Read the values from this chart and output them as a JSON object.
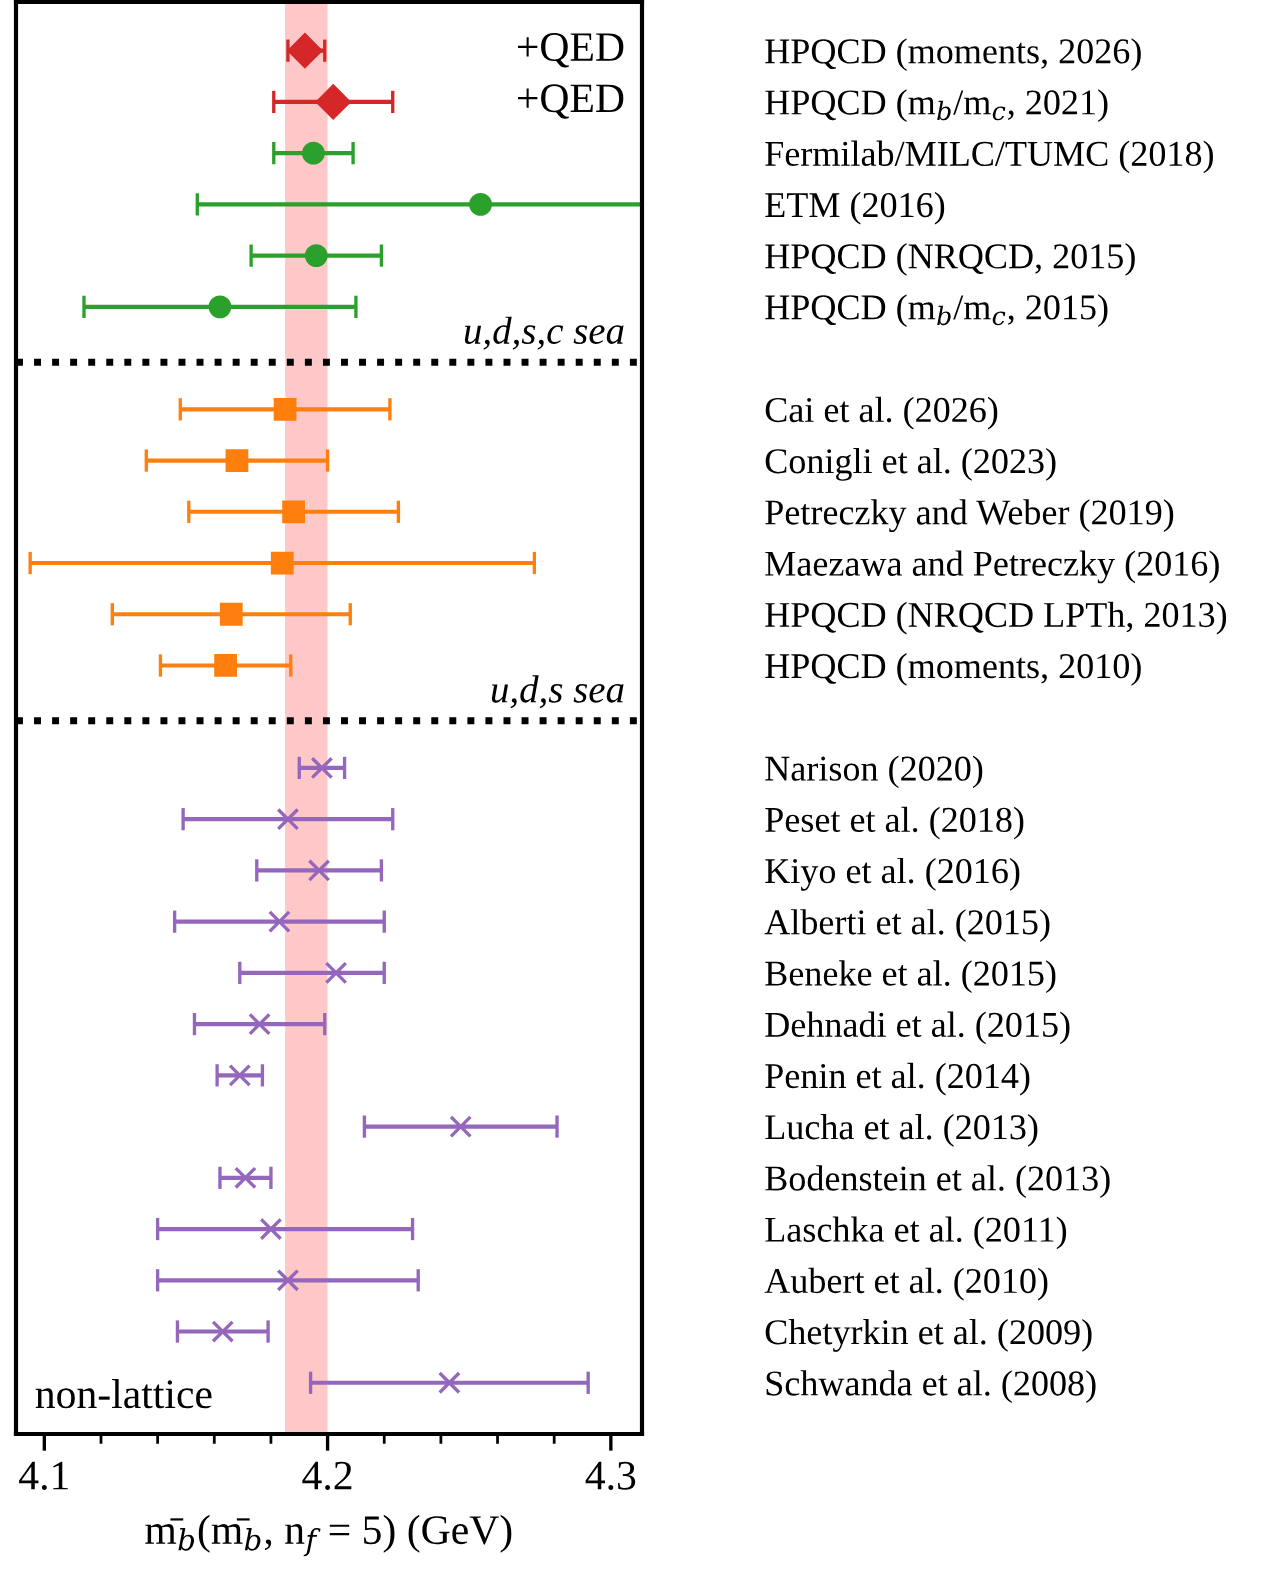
{
  "chart_data": {
    "type": "scatter",
    "orientation": "horizontal",
    "xlabel": "m̄$_{b}$(m̄$_{b}$, n$_{f}$ = 5) (GeV)",
    "categories": [
      "HPQCD (moments, 2026)",
      "HPQCD (m$_{b}$/m$_{c}$, 2021)",
      "Fermilab/MILC/TUMC (2018)",
      "ETM (2016)",
      "HPQCD (NRQCD, 2015)",
      "HPQCD (m$_{b}$/m$_{c}$, 2015)",
      null,
      "Cai et al. (2026)",
      "Conigli et al. (2023)",
      "Petreczky and Weber (2019)",
      "Maezawa and Petreczky (2016)",
      "HPQCD (NRQCD LPTh, 2013)",
      "HPQCD (moments, 2010)",
      null,
      "Narison (2020)",
      "Peset et al. (2018)",
      "Kiyo et al. (2016)",
      "Alberti et al. (2015)",
      "Beneke et al. (2015)",
      "Dehnadi et al. (2015)",
      "Penin et al. (2014)",
      "Lucha et al. (2013)",
      "Bodenstein et al. (2013)",
      "Laschka et al. (2011)",
      "Aubert et al. (2010)",
      "Chetyrkin et al. (2009)",
      "Schwanda et al. (2008)"
    ],
    "series": [
      {
        "color": "#d62728",
        "marker": "diamond",
        "values": [
          4.192,
          4.202,
          null,
          null,
          null,
          null,
          null,
          null,
          null,
          null,
          null,
          null,
          null,
          null,
          null,
          null,
          null,
          null,
          null,
          null,
          null,
          null,
          null,
          null,
          null,
          null,
          null
        ],
        "errors": [
          [
            4.186,
            4.199
          ],
          0.021,
          null,
          null,
          null,
          null,
          null,
          null,
          null,
          null,
          null,
          null,
          null,
          null,
          null,
          null,
          null,
          null,
          null,
          null,
          null,
          null,
          null,
          null,
          null,
          null,
          null
        ]
      },
      {
        "color": "#2ca02c",
        "marker": "circle",
        "values": [
          null,
          null,
          4.195,
          4.254,
          4.196,
          4.162,
          null,
          null,
          null,
          null,
          null,
          null,
          null,
          null,
          null,
          null,
          null,
          null,
          null,
          null,
          null,
          null,
          null,
          null,
          null,
          null,
          null
        ],
        "errors": [
          null,
          null,
          0.014,
          [
            4.154,
            4.311
          ],
          0.023,
          0.048,
          null,
          null,
          null,
          null,
          null,
          null,
          null,
          null,
          null,
          null,
          null,
          null,
          null,
          null,
          null,
          null,
          null,
          null,
          null,
          null,
          null
        ]
      },
      {
        "color": "#ff7f0e",
        "marker": "square",
        "values": [
          null,
          null,
          null,
          null,
          null,
          null,
          null,
          4.185,
          4.168,
          4.188,
          4.184,
          4.166,
          4.164,
          null,
          null,
          null,
          null,
          null,
          null,
          null,
          null,
          null,
          null,
          null,
          null,
          null,
          null
        ],
        "errors": [
          null,
          null,
          null,
          null,
          null,
          null,
          null,
          0.037,
          0.032,
          0.037,
          0.089,
          0.042,
          0.023,
          null,
          null,
          null,
          null,
          null,
          null,
          null,
          null,
          null,
          null,
          null,
          null,
          null,
          null
        ]
      },
      {
        "color": "#9467bd",
        "marker": "cross",
        "values": [
          null,
          null,
          null,
          null,
          null,
          null,
          null,
          null,
          null,
          null,
          null,
          null,
          null,
          null,
          4.198,
          4.186,
          4.197,
          4.183,
          4.203,
          4.176,
          4.169,
          4.247,
          4.171,
          4.18,
          4.186,
          4.163,
          4.243
        ],
        "errors": [
          null,
          null,
          null,
          null,
          null,
          null,
          null,
          null,
          null,
          null,
          null,
          null,
          null,
          null,
          0.008,
          0.037,
          0.022,
          0.037,
          [
            4.169,
            4.22
          ],
          0.023,
          0.008,
          0.034,
          0.009,
          [
            4.14,
            4.23
          ],
          0.046,
          0.016,
          0.049
        ]
      }
    ],
    "xlim": [
      4.09,
      4.311
    ],
    "xticks": [
      4.1,
      {
        "value": 4.12,
        "label": null
      },
      {
        "value": 4.14,
        "label": null
      },
      {
        "value": 4.16,
        "label": null
      },
      {
        "value": 4.18,
        "label": null
      },
      4.2,
      {
        "value": 4.22,
        "label": null
      },
      {
        "value": 4.24,
        "label": null
      },
      {
        "value": 4.26,
        "label": null
      },
      {
        "value": 4.28,
        "label": null
      },
      4.3
    ],
    "bands": [
      {
        "axis": "x",
        "from": 4.185,
        "to": 4.2,
        "color": "#ffc8c8"
      }
    ],
    "annotations": [
      "+QED",
      "+QED",
      "u,d,s,c sea",
      "u,d,s sea",
      "non-lattice"
    ],
    "legend": false
  }
}
